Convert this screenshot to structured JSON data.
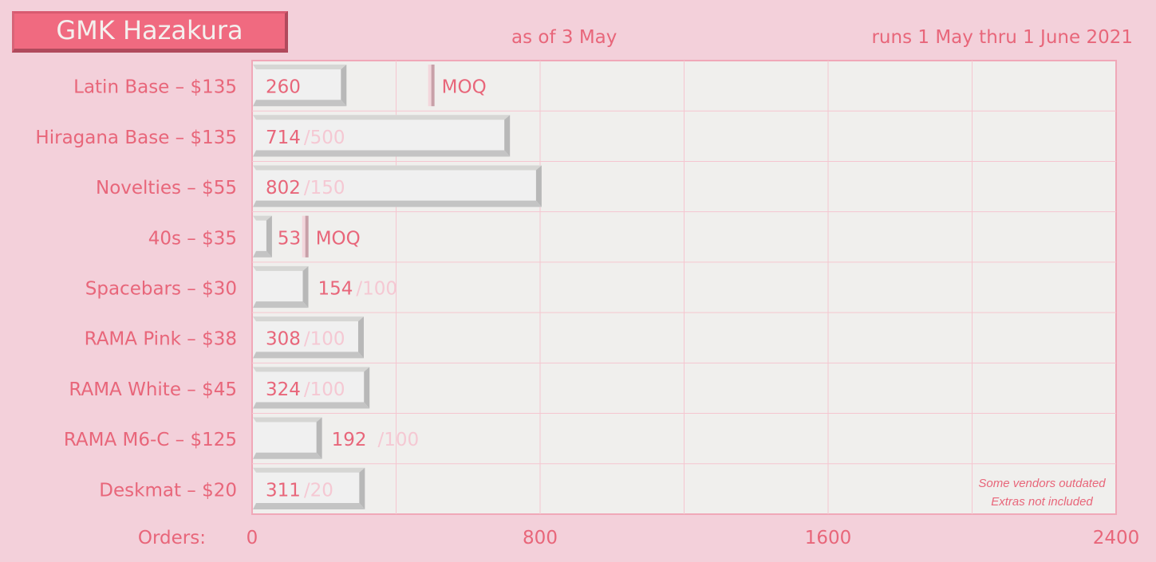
{
  "header": {
    "title": "GMK Hazakura",
    "as_of": "as of 3 May",
    "runs": "runs 1 May thru 1 June 2021"
  },
  "colors": {
    "background": "#f3d0da",
    "accent": "#e8667a",
    "plot_bg": "#f0efed",
    "grid": "#f5c6d0",
    "bar": "#f0f0f0",
    "bar_bevel": "#c4c4c4",
    "target_text": "#f5c8d3",
    "moq_marker": "#c8a0a8"
  },
  "chart_data": {
    "type": "bar",
    "orientation": "horizontal",
    "xlabel": "Orders:",
    "xlim": [
      0,
      2400
    ],
    "xticks": [
      0,
      800,
      1600,
      2400
    ],
    "grid": true,
    "categories": [
      "Latin Base – $135",
      "Hiragana Base – $135",
      "Novelties – $55",
      "40s – $35",
      "Spacebars – $30",
      "RAMA Pink – $38",
      "RAMA White – $45",
      "RAMA M6-C – $125",
      "Deskmat – $20"
    ],
    "values": [
      260,
      714,
      802,
      53,
      154,
      308,
      324,
      192,
      311
    ],
    "targets": [
      null,
      "/500",
      "/150",
      null,
      "/100",
      "/100",
      "/100",
      "/100",
      "/20"
    ],
    "moq_markers": [
      {
        "row": 0,
        "value": 500,
        "label": "MOQ"
      },
      {
        "row": 3,
        "value": 150,
        "label": "MOQ"
      }
    ],
    "annotations": [
      "Some vendors outdated",
      "Extras not included"
    ]
  }
}
